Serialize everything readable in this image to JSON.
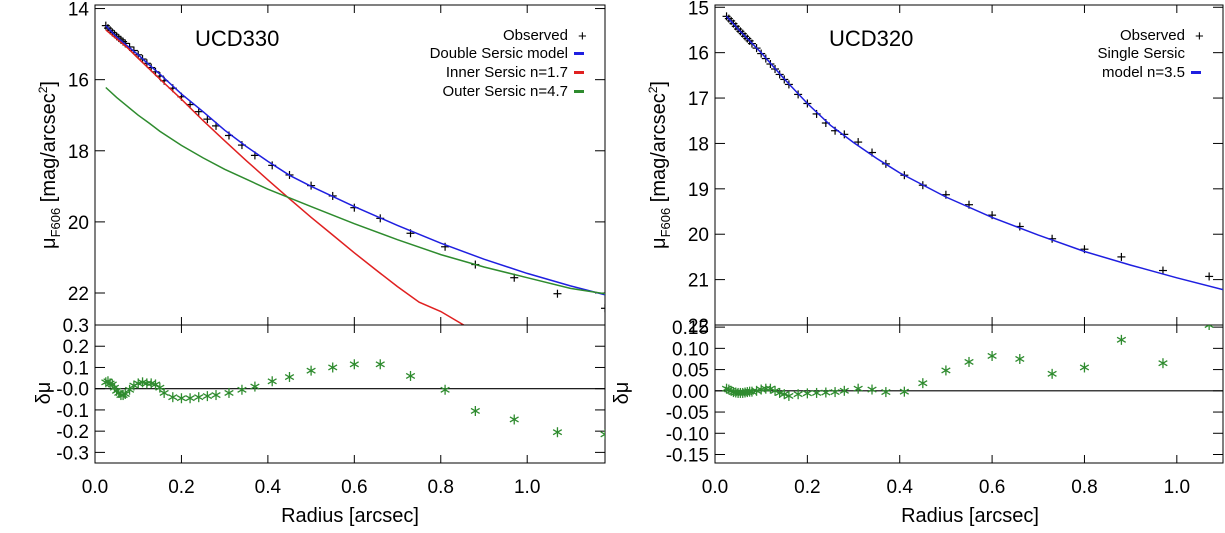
{
  "chart_data": [
    {
      "type": "line",
      "panel": "left-top",
      "title": "UCD330",
      "xlabel": "",
      "ylabel_main": "μ",
      "ylabel_sub": "F606",
      "ylabel_rest": " [mag/arcsec",
      "ylabel_sup": "2",
      "ylabel_end": "]",
      "xlim": [
        0.0,
        1.18
      ],
      "ylim": [
        22.9,
        13.9
      ],
      "y_inverted": true,
      "yticks": [
        14,
        16,
        18,
        20,
        22
      ],
      "ytick_labels": [
        "14",
        "16",
        "18",
        "20",
        "22"
      ],
      "legend_position": "top-right",
      "legend": [
        {
          "label": "Observed",
          "marker": "+",
          "color": "#000000"
        },
        {
          "label": "Double Sersic model",
          "marker": "-",
          "color": "#1f1fe0"
        },
        {
          "label": "Inner Sersic n=1.7",
          "marker": "-",
          "color": "#e02020"
        },
        {
          "label": "Outer Sersic n=4.7",
          "marker": "-",
          "color": "#2e8b2e"
        }
      ],
      "series": [
        {
          "name": "Observed",
          "kind": "points",
          "color": "#000000",
          "x": [
            0.025,
            0.03,
            0.035,
            0.04,
            0.045,
            0.05,
            0.055,
            0.06,
            0.065,
            0.07,
            0.08,
            0.09,
            0.1,
            0.11,
            0.12,
            0.13,
            0.14,
            0.15,
            0.16,
            0.18,
            0.2,
            0.22,
            0.24,
            0.26,
            0.28,
            0.31,
            0.34,
            0.37,
            0.41,
            0.45,
            0.5,
            0.55,
            0.6,
            0.66,
            0.73,
            0.81,
            0.88,
            0.97,
            1.07,
            1.18
          ],
          "y": [
            14.48,
            14.55,
            14.61,
            14.67,
            14.72,
            14.78,
            14.83,
            14.88,
            14.93,
            14.98,
            15.08,
            15.18,
            15.3,
            15.42,
            15.54,
            15.66,
            15.78,
            15.9,
            16.03,
            16.24,
            16.48,
            16.7,
            16.9,
            17.11,
            17.3,
            17.57,
            17.84,
            18.13,
            18.41,
            18.68,
            18.98,
            19.27,
            19.6,
            19.9,
            20.32,
            20.7,
            21.2,
            21.57,
            22.02,
            22.43
          ]
        },
        {
          "name": "Double Sersic model",
          "kind": "line",
          "color": "#1f1fe0",
          "x": [
            0.025,
            0.05,
            0.075,
            0.1,
            0.125,
            0.15,
            0.2,
            0.25,
            0.3,
            0.35,
            0.4,
            0.45,
            0.5,
            0.6,
            0.7,
            0.8,
            0.9,
            1.0,
            1.1,
            1.18
          ],
          "y": [
            14.48,
            14.8,
            15.05,
            15.3,
            15.58,
            15.84,
            16.4,
            16.9,
            17.42,
            17.88,
            18.3,
            18.69,
            19.0,
            19.57,
            20.1,
            20.6,
            21.05,
            21.45,
            21.8,
            22.05
          ]
        },
        {
          "name": "Inner Sersic n=1.7",
          "kind": "line",
          "color": "#e02020",
          "x": [
            0.025,
            0.05,
            0.075,
            0.1,
            0.15,
            0.2,
            0.25,
            0.3,
            0.35,
            0.4,
            0.45,
            0.5,
            0.55,
            0.6,
            0.65,
            0.7,
            0.75,
            0.8,
            0.86
          ],
          "y": [
            14.6,
            14.85,
            15.1,
            15.4,
            15.98,
            16.55,
            17.15,
            17.72,
            18.28,
            18.82,
            19.35,
            19.87,
            20.37,
            20.87,
            21.35,
            21.82,
            22.26,
            22.52,
            22.95
          ]
        },
        {
          "name": "Outer Sersic n=4.7",
          "kind": "line",
          "color": "#2e8b2e",
          "x": [
            0.025,
            0.05,
            0.075,
            0.1,
            0.125,
            0.15,
            0.2,
            0.25,
            0.3,
            0.35,
            0.4,
            0.5,
            0.6,
            0.7,
            0.8,
            0.9,
            1.0,
            1.1,
            1.18
          ],
          "y": [
            16.22,
            16.5,
            16.75,
            17.0,
            17.22,
            17.45,
            17.85,
            18.2,
            18.52,
            18.8,
            19.08,
            19.57,
            20.05,
            20.5,
            20.92,
            21.27,
            21.57,
            21.87,
            22.02
          ]
        }
      ]
    },
    {
      "type": "scatter",
      "panel": "left-bottom",
      "xlabel": "Radius [arcsec]",
      "ylabel": "δμ",
      "xlim": [
        0.0,
        1.18
      ],
      "ylim": [
        -0.35,
        0.3
      ],
      "xticks": [
        0.0,
        0.2,
        0.4,
        0.6,
        0.8,
        1.0
      ],
      "xtick_labels": [
        "0.0",
        "0.2",
        "0.4",
        "0.6",
        "0.8",
        "1.0"
      ],
      "yticks": [
        0.3,
        0.2,
        0.1,
        0.0,
        -0.1,
        -0.2,
        -0.3
      ],
      "ytick_labels": [
        "0.3",
        "0.2",
        "0.1",
        "-0.0",
        "-0.1",
        "-0.2",
        "-0.3"
      ],
      "zero_line": true,
      "series": [
        {
          "name": "",
          "marker": "*",
          "color": "#2e8b2e",
          "x": [
            0.025,
            0.03,
            0.035,
            0.04,
            0.045,
            0.05,
            0.055,
            0.06,
            0.065,
            0.07,
            0.08,
            0.09,
            0.1,
            0.11,
            0.12,
            0.13,
            0.14,
            0.15,
            0.16,
            0.18,
            0.2,
            0.22,
            0.24,
            0.26,
            0.28,
            0.31,
            0.34,
            0.37,
            0.41,
            0.45,
            0.5,
            0.55,
            0.6,
            0.66,
            0.73,
            0.81,
            0.88,
            0.97,
            1.07,
            1.18
          ],
          "y": [
            0.03,
            0.035,
            0.025,
            0.02,
            0.005,
            -0.01,
            -0.02,
            -0.03,
            -0.03,
            -0.025,
            -0.005,
            0.015,
            0.025,
            0.03,
            0.025,
            0.025,
            0.02,
            0.005,
            -0.02,
            -0.04,
            -0.045,
            -0.045,
            -0.04,
            -0.035,
            -0.03,
            -0.02,
            -0.005,
            0.01,
            0.035,
            0.055,
            0.085,
            0.1,
            0.115,
            0.115,
            0.06,
            -0.005,
            -0.105,
            -0.145,
            -0.205,
            -0.215
          ]
        }
      ]
    },
    {
      "type": "line",
      "panel": "right-top",
      "title": "UCD320",
      "xlabel": "",
      "ylabel_main": "μ",
      "ylabel_sub": "F606",
      "ylabel_rest": " [mag/arcsec",
      "ylabel_sup": "2",
      "ylabel_end": "]",
      "xlim": [
        0.0,
        1.1
      ],
      "ylim": [
        22.0,
        14.95
      ],
      "y_inverted": true,
      "yticks": [
        15,
        16,
        17,
        18,
        19,
        20,
        21,
        22
      ],
      "ytick_labels": [
        "15",
        "16",
        "17",
        "18",
        "19",
        "20",
        "21",
        "22"
      ],
      "legend_position": "top-right",
      "legend": [
        {
          "label": "Observed",
          "marker": "+",
          "color": "#000000"
        },
        {
          "label": "Single Sersic",
          "label2": "model n=3.5",
          "marker": "-",
          "color": "#1f1fe0"
        }
      ],
      "series": [
        {
          "name": "Observed",
          "kind": "points",
          "color": "#000000",
          "x": [
            0.025,
            0.03,
            0.035,
            0.04,
            0.045,
            0.05,
            0.055,
            0.06,
            0.065,
            0.07,
            0.075,
            0.08,
            0.09,
            0.1,
            0.11,
            0.12,
            0.13,
            0.14,
            0.15,
            0.16,
            0.18,
            0.2,
            0.22,
            0.24,
            0.26,
            0.28,
            0.31,
            0.34,
            0.37,
            0.41,
            0.45,
            0.5,
            0.55,
            0.6,
            0.66,
            0.73,
            0.8,
            0.88,
            0.97,
            1.07
          ],
          "y": [
            15.2,
            15.25,
            15.3,
            15.36,
            15.42,
            15.48,
            15.53,
            15.58,
            15.64,
            15.69,
            15.74,
            15.8,
            15.9,
            16.02,
            16.13,
            16.25,
            16.36,
            16.48,
            16.59,
            16.7,
            16.92,
            17.12,
            17.35,
            17.55,
            17.72,
            17.8,
            17.97,
            18.2,
            18.45,
            18.7,
            18.92,
            19.13,
            19.35,
            19.58,
            19.83,
            20.1,
            20.33,
            20.5,
            20.8,
            20.93
          ]
        },
        {
          "name": "Single Sersic model n=3.5",
          "kind": "line",
          "color": "#1f1fe0",
          "x": [
            0.025,
            0.05,
            0.075,
            0.1,
            0.15,
            0.2,
            0.25,
            0.3,
            0.35,
            0.4,
            0.5,
            0.6,
            0.7,
            0.8,
            0.9,
            1.0,
            1.1
          ],
          "y": [
            15.2,
            15.48,
            15.74,
            16.0,
            16.58,
            17.12,
            17.6,
            17.98,
            18.33,
            18.65,
            19.18,
            19.63,
            20.02,
            20.38,
            20.68,
            20.96,
            21.22
          ]
        }
      ]
    },
    {
      "type": "scatter",
      "panel": "right-bottom",
      "xlabel": "Radius [arcsec]",
      "ylabel": "δμ",
      "xlim": [
        0.0,
        1.1
      ],
      "ylim": [
        -0.17,
        0.155
      ],
      "xticks": [
        0.0,
        0.2,
        0.4,
        0.6,
        0.8,
        1.0
      ],
      "xtick_labels": [
        "0.0",
        "0.2",
        "0.4",
        "0.6",
        "0.8",
        "1.0"
      ],
      "yticks": [
        0.15,
        0.1,
        0.05,
        0.0,
        -0.05,
        -0.1,
        -0.15
      ],
      "ytick_labels": [
        "0.15",
        "0.10",
        "0.05",
        "0.00",
        "-0.05",
        "-0.10",
        "-0.15"
      ],
      "zero_line": true,
      "series": [
        {
          "name": "",
          "marker": "*",
          "color": "#2e8b2e",
          "x": [
            0.025,
            0.03,
            0.035,
            0.04,
            0.045,
            0.05,
            0.055,
            0.06,
            0.065,
            0.07,
            0.075,
            0.08,
            0.09,
            0.1,
            0.11,
            0.12,
            0.13,
            0.14,
            0.15,
            0.16,
            0.18,
            0.2,
            0.22,
            0.24,
            0.26,
            0.28,
            0.31,
            0.34,
            0.37,
            0.41,
            0.45,
            0.5,
            0.55,
            0.6,
            0.66,
            0.73,
            0.8,
            0.88,
            0.97,
            1.07
          ],
          "y": [
            0.005,
            0.003,
            0.0,
            -0.003,
            -0.004,
            -0.005,
            -0.005,
            -0.005,
            -0.004,
            -0.003,
            -0.002,
            -0.002,
            0.0,
            0.003,
            0.005,
            0.005,
            0.0,
            -0.005,
            -0.008,
            -0.012,
            -0.008,
            -0.006,
            -0.005,
            -0.004,
            -0.003,
            0.0,
            0.005,
            0.003,
            -0.003,
            -0.002,
            0.018,
            0.048,
            0.068,
            0.082,
            0.075,
            0.04,
            0.055,
            0.12,
            0.065,
            0.155
          ]
        }
      ]
    }
  ]
}
